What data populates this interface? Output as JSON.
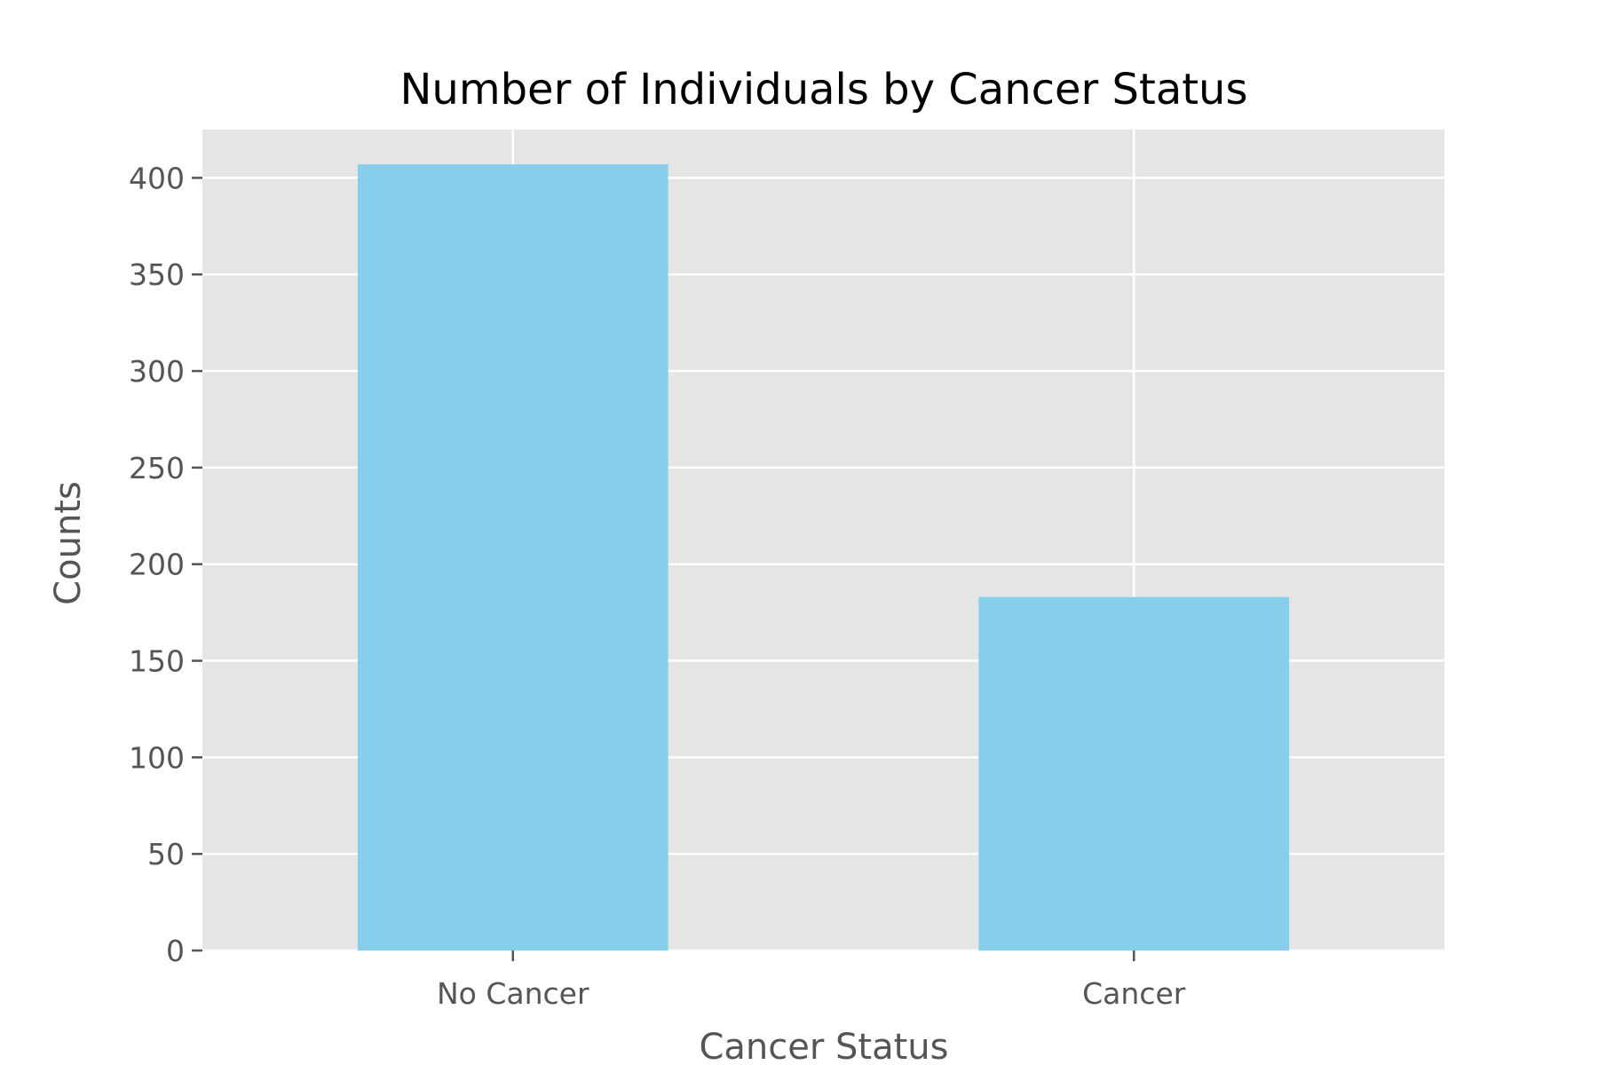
{
  "chart_data": {
    "type": "bar",
    "title": "Number of Individuals by Cancer Status",
    "xlabel": "Cancer Status",
    "ylabel": "Counts",
    "categories": [
      "No Cancer",
      "Cancer"
    ],
    "values": [
      407,
      183
    ],
    "ylim": [
      0,
      425
    ],
    "yticks": [
      0,
      50,
      100,
      150,
      200,
      250,
      300,
      350,
      400
    ],
    "grid": true,
    "legend": "none",
    "colors": {
      "bar": "#87ceeb",
      "plot_background": "#e5e5e5",
      "grid": "#ffffff"
    }
  }
}
